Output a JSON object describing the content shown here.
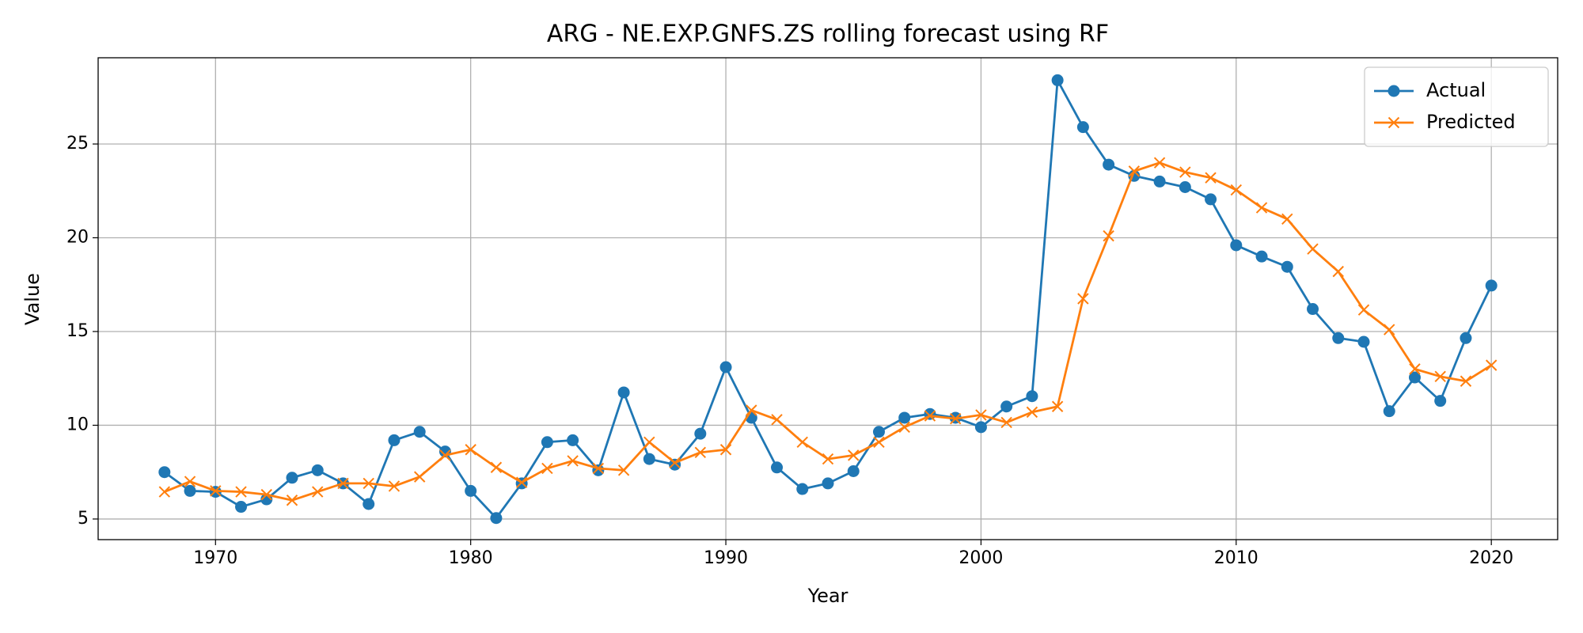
{
  "chart_data": {
    "type": "line",
    "title": "ARG - NE.EXP.GNFS.ZS rolling forecast using RF",
    "x_label": "Year",
    "y_label": "Value",
    "x": [
      1968,
      1969,
      1970,
      1971,
      1972,
      1973,
      1974,
      1975,
      1976,
      1977,
      1978,
      1979,
      1980,
      1981,
      1982,
      1983,
      1984,
      1985,
      1986,
      1987,
      1988,
      1989,
      1990,
      1991,
      1992,
      1993,
      1994,
      1995,
      1996,
      1997,
      1998,
      1999,
      2000,
      2001,
      2002,
      2003,
      2004,
      2005,
      2006,
      2007,
      2008,
      2009,
      2010,
      2011,
      2012,
      2013,
      2014,
      2015,
      2016,
      2017,
      2018,
      2019,
      2020
    ],
    "series": [
      {
        "name": "Actual",
        "color": "#1f77b4",
        "marker": "o",
        "values": [
          7.5,
          6.5,
          6.45,
          5.65,
          6.05,
          7.2,
          7.6,
          6.9,
          5.8,
          9.2,
          9.65,
          8.6,
          6.5,
          5.05,
          6.9,
          9.1,
          9.2,
          7.6,
          11.75,
          8.2,
          7.9,
          9.55,
          13.1,
          10.4,
          7.75,
          6.6,
          6.9,
          7.55,
          9.65,
          10.4,
          10.6,
          10.4,
          9.9,
          11.0,
          11.55,
          28.4,
          25.9,
          23.9,
          23.3,
          23.0,
          22.7,
          22.05,
          19.6,
          19.0,
          18.45,
          16.2,
          14.65,
          14.45,
          10.75,
          12.55,
          11.3,
          14.65,
          17.45
        ]
      },
      {
        "name": "Predicted",
        "color": "#ff7f0e",
        "marker": "x",
        "values": [
          6.45,
          7.0,
          6.5,
          6.45,
          6.3,
          6.0,
          6.45,
          6.9,
          6.9,
          6.75,
          7.25,
          8.4,
          8.7,
          7.75,
          6.95,
          7.7,
          8.1,
          7.7,
          7.6,
          9.1,
          8.0,
          8.55,
          8.7,
          10.8,
          10.3,
          9.1,
          8.2,
          8.4,
          9.1,
          9.9,
          10.5,
          10.35,
          10.55,
          10.15,
          10.7,
          11.0,
          16.75,
          20.1,
          23.55,
          24.0,
          23.5,
          23.2,
          22.55,
          21.6,
          21.0,
          19.4,
          18.2,
          16.15,
          15.1,
          13.0,
          12.6,
          12.35,
          13.2
        ]
      }
    ],
    "xlim": [
      1965.4,
      2022.6
    ],
    "xticks": [
      1970,
      1980,
      1990,
      2000,
      2010,
      2020
    ],
    "ylim": [
      3.9,
      29.6
    ],
    "yticks": [
      5,
      10,
      15,
      20,
      25
    ],
    "grid": true,
    "legend": "upper right"
  }
}
